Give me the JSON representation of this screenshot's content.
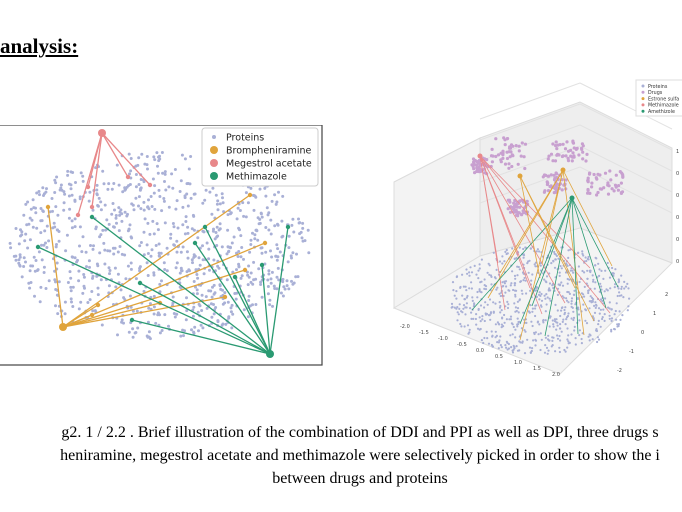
{
  "heading": "analysis:",
  "figure_left": {
    "legend": {
      "items": [
        {
          "label": "Proteins",
          "color": "#a9b0d6",
          "marker": "small"
        },
        {
          "label": "Brompheniramine",
          "color": "#e0a43c",
          "marker": "large"
        },
        {
          "label": "Megestrol acetate",
          "color": "#e8888a",
          "marker": "large"
        },
        {
          "label": "Methimazole",
          "color": "#2a9a72",
          "marker": "large"
        }
      ]
    },
    "colors": {
      "proteins": "#a9b0d6",
      "brompheniramine": "#e0a43c",
      "megestrol": "#e8888a",
      "methimazole": "#2a9a72",
      "frame": "#444444"
    }
  },
  "figure_right": {
    "legend": {
      "items": [
        {
          "label": "Proteins",
          "color": "#a9b0d6"
        },
        {
          "label": "Drugs",
          "color": "#c8a0d0"
        },
        {
          "label": "Estrone sulfa",
          "color": "#e0a43c"
        },
        {
          "label": "Methimazole",
          "color": "#e8888a"
        },
        {
          "label": "Amethizole",
          "color": "#2a9a72"
        }
      ]
    },
    "x_ticks": [
      "-2.0",
      "-1.5",
      "-1.0",
      "-0.5",
      "0.0",
      "0.5",
      "1.0",
      "1.5",
      "2.0"
    ],
    "y_ticks": [
      "2",
      "1",
      "0",
      "-1",
      "-2"
    ],
    "z_ticks": [
      "1",
      "0",
      "0",
      "0",
      "0",
      "0"
    ]
  },
  "caption": {
    "line1": "g2. 1 / 2.2 . Brief illustration of the combination of DDI and PPI as well as DPI, three drugs s",
    "line2": "heniramine, megestrol acetate and methimazole were selectively picked in order to show the i",
    "line3": "between drugs and proteins"
  }
}
